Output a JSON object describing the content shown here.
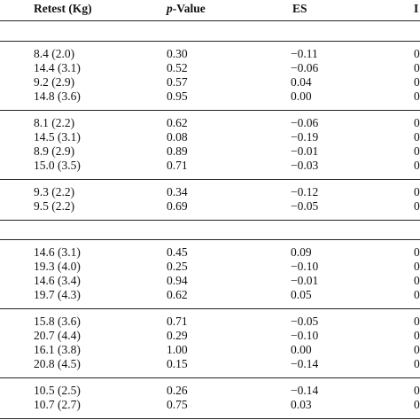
{
  "header": {
    "retest": "Retest (Kg)",
    "p_prefix": "p",
    "p_suffix": "-Value",
    "es": "ES",
    "last": "I"
  },
  "sections": [
    {
      "groups": [
        {
          "rows": [
            [
              "8.4 (2.0)",
              "0.30",
              "−0.11",
              "0"
            ],
            [
              "14.4 (3.1)",
              "0.52",
              "−0.06",
              "0"
            ],
            [
              "9.2 (2.9)",
              "0.57",
              "0.04",
              "0"
            ],
            [
              "14.8 (3.6)",
              "0.95",
              "0.00",
              "0"
            ]
          ]
        },
        {
          "rows": [
            [
              "8.1 (2.2)",
              "0.62",
              "−0.06",
              "0"
            ],
            [
              "14.5 (3.1)",
              "0.08",
              "−0.19",
              "0"
            ],
            [
              "8.9 (2.9)",
              "0.89",
              "−0.01",
              "0"
            ],
            [
              "15.0 (3.5)",
              "0.71",
              "−0.03",
              "0"
            ]
          ]
        },
        {
          "rows": [
            [
              "9.3 (2.2)",
              "0.34",
              "−0.12",
              "0"
            ],
            [
              "9.5 (2.2)",
              "0.69",
              "−0.05",
              "0"
            ]
          ]
        }
      ]
    },
    {
      "groups": [
        {
          "rows": [
            [
              "14.6 (3.1)",
              "0.45",
              "0.09",
              "0"
            ],
            [
              "19.3 (4.0)",
              "0.25",
              "−0.10",
              "0"
            ],
            [
              "14.6 (3.4)",
              "0.94",
              "−0.01",
              "0"
            ],
            [
              "19.7 (4.3)",
              "0.62",
              "0.05",
              "0"
            ]
          ]
        },
        {
          "rows": [
            [
              "15.8 (3.6)",
              "0.71",
              "−0.05",
              "0"
            ],
            [
              "20.7 (4.4)",
              "0.29",
              "−0.10",
              "0"
            ],
            [
              "16.1 (3.8)",
              "1.00",
              "0.00",
              "0"
            ],
            [
              "20.8 (4.5)",
              "0.15",
              "−0.14",
              "0"
            ]
          ]
        },
        {
          "rows": [
            [
              "10.5 (2.5)",
              "0.26",
              "−0.14",
              "0"
            ],
            [
              "10.7 (2.7)",
              "0.75",
              "0.03",
              "0"
            ]
          ]
        }
      ]
    }
  ]
}
